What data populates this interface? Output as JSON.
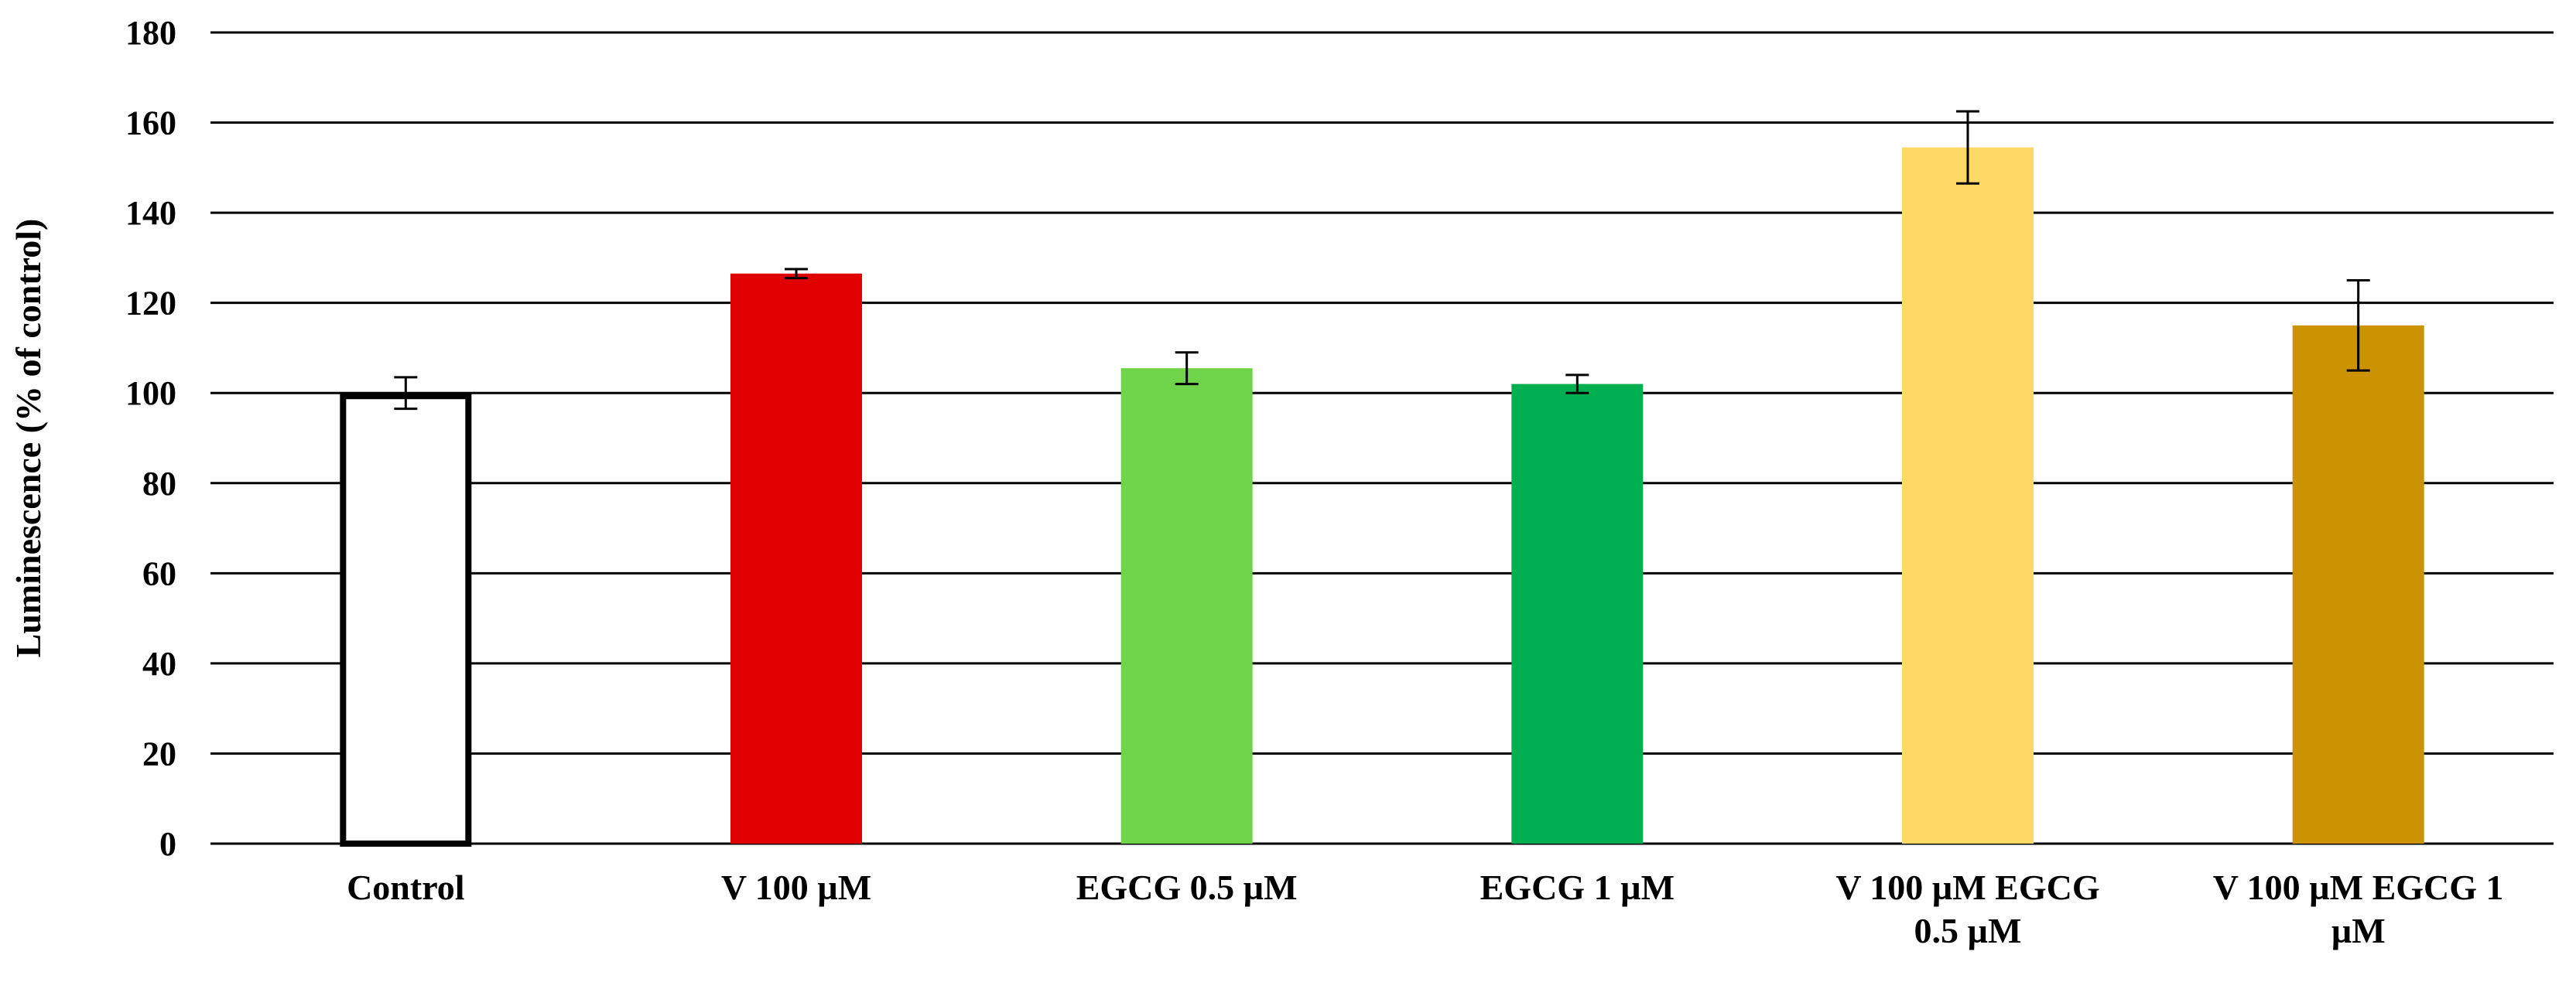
{
  "chart_data": {
    "type": "bar",
    "title": "",
    "xlabel": "",
    "ylabel": "Luminescence (% of control)",
    "ylim": [
      0,
      180
    ],
    "yticks": [
      0,
      20,
      40,
      60,
      80,
      100,
      120,
      140,
      160,
      180
    ],
    "grid": true,
    "legend": "none",
    "categories": [
      "Control",
      "V 100 µM",
      "EGCG 0.5 µM",
      "EGCG 1 µM",
      "V 100 µM EGCG 0.5 µM",
      "V 100 µM EGCG 1 µM"
    ],
    "category_label_lines": [
      [
        "Control"
      ],
      [
        "V 100 µM"
      ],
      [
        "EGCG 0.5 µM"
      ],
      [
        "EGCG 1 µM"
      ],
      [
        "V 100 µM EGCG",
        "0.5 µM"
      ],
      [
        "V 100 µM EGCG 1",
        "µM"
      ]
    ],
    "values": [
      100,
      126.5,
      105.5,
      102,
      154.5,
      115
    ],
    "errors": [
      3.5,
      1,
      3.5,
      2,
      8,
      10
    ],
    "colors": [
      "#FFFFFF",
      "#E00000",
      "#70D44B",
      "#00B050",
      "#FFD966",
      "#CC9300"
    ],
    "outline_colors": [
      "#000000",
      null,
      null,
      null,
      null,
      null
    ]
  }
}
